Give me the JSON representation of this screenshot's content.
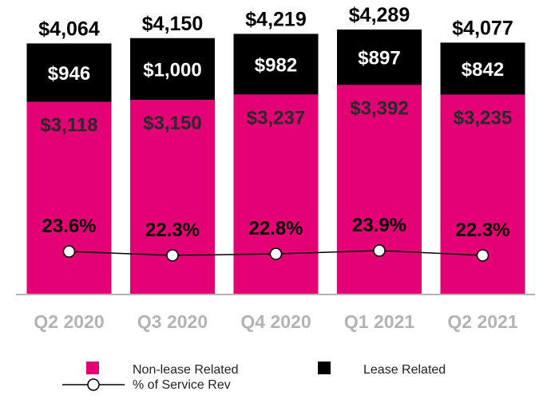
{
  "chart_data": {
    "type": "bar",
    "stacked": true,
    "categories": [
      "Q2 2020",
      "Q3 2020",
      "Q4 2020",
      "Q1 2021",
      "Q2 2021"
    ],
    "series": [
      {
        "name": "Non-lease Related",
        "color": "#e20074",
        "values": [
          3118,
          3150,
          3237,
          3392,
          3235
        ],
        "labels": [
          "$3,118",
          "$3,150",
          "$3,237",
          "$3,392",
          "$3,235"
        ]
      },
      {
        "name": "Lease Related",
        "color": "#000000",
        "values": [
          946,
          1000,
          982,
          897,
          842
        ],
        "labels": [
          "$946",
          "$1,000",
          "$982",
          "$897",
          "$842"
        ]
      }
    ],
    "totals": [
      4064,
      4150,
      4219,
      4289,
      4077
    ],
    "total_labels": [
      "$4,064",
      "$4,150",
      "$4,219",
      "$4,289",
      "$4,077"
    ],
    "line_series": {
      "name": "% of Service Rev",
      "values": [
        23.6,
        22.3,
        22.8,
        23.9,
        22.3
      ],
      "labels": [
        "23.6%",
        "22.3%",
        "22.8%",
        "23.9%",
        "22.3%"
      ]
    },
    "legend": [
      "Non-lease Related",
      "Lease Related",
      "% of Service Rev"
    ],
    "legend_position": "bottom",
    "grid": false,
    "title": "",
    "xlabel": "",
    "ylabel": "",
    "ylim": [
      0,
      4289
    ]
  }
}
